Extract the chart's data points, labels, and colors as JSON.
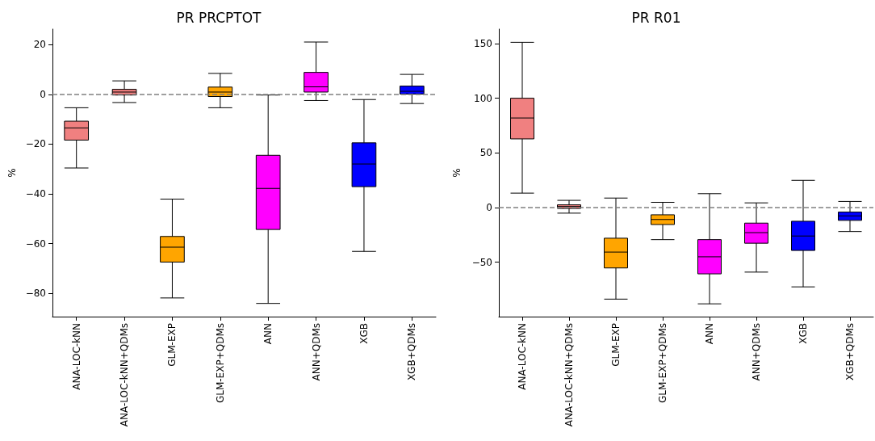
{
  "chart_data": [
    {
      "type": "box",
      "title": "PR PRCPTOT",
      "ylabel": "%",
      "categories": [
        "ANA-LOC-kNN",
        "ANA-LOC-kNN+QDMs",
        "GLM-EXP",
        "GLM-EXP+QDMs",
        "ANN",
        "ANN+QDMs",
        "XGB",
        "XGB+QDMs"
      ],
      "colors": [
        "#f08080",
        "#f08080",
        "#ffa500",
        "#ffa500",
        "#ff00ff",
        "#ff00ff",
        "#0000ff",
        "#0000ff"
      ],
      "boxes": [
        {
          "low": -29.6,
          "q1": -18.4,
          "median": -13.5,
          "q3": -10.8,
          "high": -5.4
        },
        {
          "low": -3.3,
          "q1": -0.3,
          "median": 0.9,
          "q3": 2.0,
          "high": 5.4
        },
        {
          "low": -81.8,
          "q1": -67.4,
          "median": -61.4,
          "q3": -57.1,
          "high": -42.1
        },
        {
          "low": -5.4,
          "q1": -0.9,
          "median": 0.9,
          "q3": 2.9,
          "high": 8.4
        },
        {
          "low": -84.0,
          "q1": -54.3,
          "median": -37.8,
          "q3": -24.5,
          "high": -0.3
        },
        {
          "low": -2.5,
          "q1": 0.9,
          "median": 3.0,
          "q3": 8.8,
          "high": 21.0
        },
        {
          "low": -63.1,
          "q1": -37.1,
          "median": -28.0,
          "q3": -19.5,
          "high": -2.1
        },
        {
          "low": -3.7,
          "q1": 0.1,
          "median": 1.2,
          "q3": 3.3,
          "high": 8.0
        }
      ],
      "ylim": [
        -89.3,
        26.2
      ],
      "yticks": [
        -80,
        -60,
        -40,
        -20,
        0,
        20
      ],
      "grid": false,
      "ref_lines": [
        {
          "axis": "y",
          "value": 0,
          "color": "#808080",
          "line_style": "dashed"
        }
      ]
    },
    {
      "type": "box",
      "title": "PR R01",
      "ylabel": "%",
      "categories": [
        "ANA-LOC-kNN",
        "ANA-LOC-kNN+QDMs",
        "GLM-EXP",
        "GLM-EXP+QDMs",
        "ANN",
        "ANN+QDMs",
        "XGB",
        "XGB+QDMs"
      ],
      "colors": [
        "#f08080",
        "#f08080",
        "#ffa500",
        "#ffa500",
        "#ff00ff",
        "#ff00ff",
        "#0000ff",
        "#0000ff"
      ],
      "boxes": [
        {
          "low": 13.2,
          "q1": 62.8,
          "median": 81.9,
          "q3": 100.0,
          "high": 151.1
        },
        {
          "low": -5.1,
          "q1": -0.8,
          "median": 1.0,
          "q3": 2.5,
          "high": 6.6
        },
        {
          "low": -83.7,
          "q1": -55.2,
          "median": -40.7,
          "q3": -28.0,
          "high": 8.7
        },
        {
          "low": -29.3,
          "q1": -15.5,
          "median": -10.9,
          "q3": -6.6,
          "high": 4.8
        },
        {
          "low": -88.0,
          "q1": -60.6,
          "median": -45.0,
          "q3": -29.3,
          "high": 12.7
        },
        {
          "low": -59.0,
          "q1": -32.6,
          "median": -22.9,
          "q3": -14.2,
          "high": 4.3
        },
        {
          "low": -72.5,
          "q1": -39.2,
          "median": -26.0,
          "q3": -12.5,
          "high": 24.9
        },
        {
          "low": -21.9,
          "q1": -11.7,
          "median": -7.6,
          "q3": -4.1,
          "high": 5.6
        }
      ],
      "ylim": [
        -99.7,
        163.2
      ],
      "yticks": [
        -50,
        0,
        50,
        100,
        150
      ],
      "grid": false,
      "ref_lines": [
        {
          "axis": "y",
          "value": 0,
          "color": "#808080",
          "line_style": "dashed"
        }
      ]
    }
  ]
}
